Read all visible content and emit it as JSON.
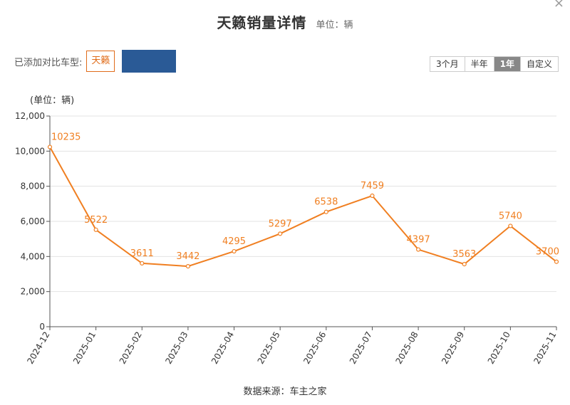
{
  "header": {
    "title": "天籁销量详情",
    "unit": "单位：辆",
    "close_glyph": "×"
  },
  "compare": {
    "label": "已添加对比车型:",
    "model": "天籁",
    "model_color": "#e06c1a",
    "swatch_color": "#2a5a96"
  },
  "range": {
    "buttons": [
      "3个月",
      "半年",
      "1年",
      "自定义"
    ],
    "active": "1年"
  },
  "chart_data": {
    "type": "line",
    "ylabel": "(单位：辆)",
    "ylim": [
      0,
      12000
    ],
    "yticks": [
      0,
      2000,
      4000,
      6000,
      8000,
      10000,
      12000
    ],
    "ytick_labels": [
      "0",
      "2,000",
      "4,000",
      "6,000",
      "8,000",
      "10,000",
      "12,000"
    ],
    "categories": [
      "2024-12",
      "2025-01",
      "2025-02",
      "2025-03",
      "2025-04",
      "2025-05",
      "2025-06",
      "2025-07",
      "2025-08",
      "2025-09",
      "2025-10",
      "2025-11"
    ],
    "series": [
      {
        "values": [
          10235,
          5522,
          3611,
          3442,
          4295,
          5297,
          6538,
          7459,
          4397,
          3563,
          5740,
          3700
        ],
        "color": "#f07f21"
      }
    ],
    "grid": true
  },
  "footer": {
    "source": "数据来源：车主之家"
  }
}
